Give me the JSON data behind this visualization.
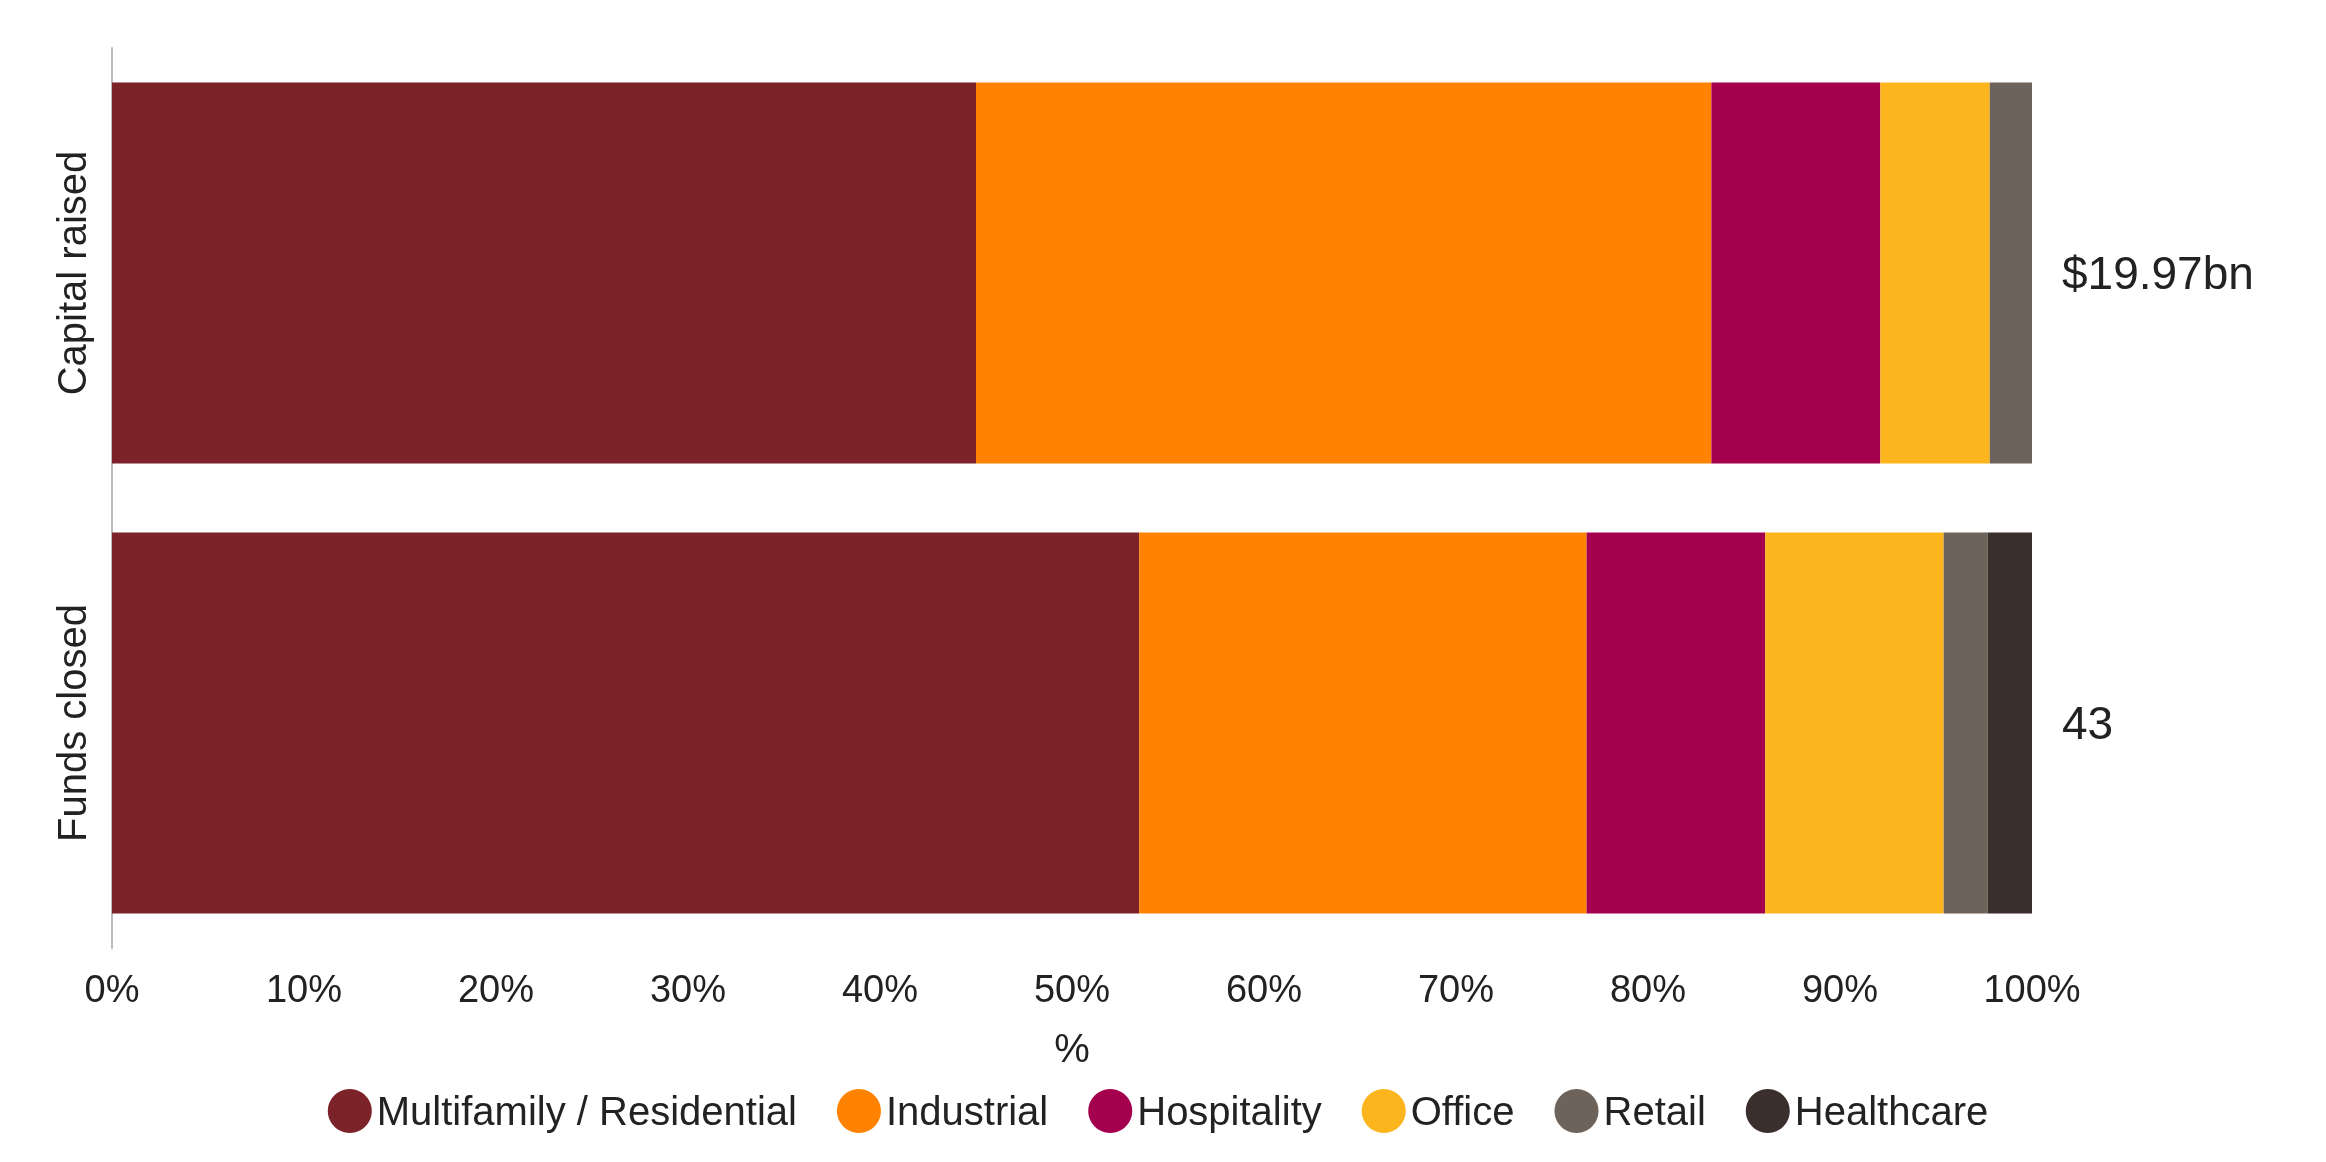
{
  "chart_data": {
    "type": "bar",
    "orientation": "horizontal",
    "stacked": true,
    "xlabel": "%",
    "categories": [
      "Capital raised",
      "Funds closed"
    ],
    "series": [
      {
        "name": "Multifamily / Residential",
        "color": "#7b2329",
        "values": [
          45.0,
          53.5
        ]
      },
      {
        "name": "Industrial",
        "color": "#ff8300",
        "values": [
          38.3,
          23.3
        ]
      },
      {
        "name": "Hospitality",
        "color": "#a5004e",
        "values": [
          8.8,
          9.3
        ]
      },
      {
        "name": "Office",
        "color": "#fdb51e",
        "values": [
          5.7,
          9.3
        ]
      },
      {
        "name": "Retail",
        "color": "#6e635b",
        "values": [
          2.2,
          2.3
        ]
      },
      {
        "name": "Healthcare",
        "color": "#3a2f2c",
        "values": [
          0,
          2.3
        ]
      }
    ],
    "xlim": [
      0,
      100
    ],
    "xticks": [
      {
        "value": 0,
        "label": "0%"
      },
      {
        "value": 10,
        "label": "10%"
      },
      {
        "value": 20,
        "label": "20%"
      },
      {
        "value": 30,
        "label": "30%"
      },
      {
        "value": 40,
        "label": "40%"
      },
      {
        "value": 50,
        "label": "50%"
      },
      {
        "value": 60,
        "label": "60%"
      },
      {
        "value": 70,
        "label": "70%"
      },
      {
        "value": 80,
        "label": "80%"
      },
      {
        "value": 90,
        "label": "90%"
      },
      {
        "value": 100,
        "label": "100%"
      }
    ],
    "annotations": [
      "$19.97bn",
      "43"
    ],
    "legend": "bottom",
    "grid": false
  }
}
